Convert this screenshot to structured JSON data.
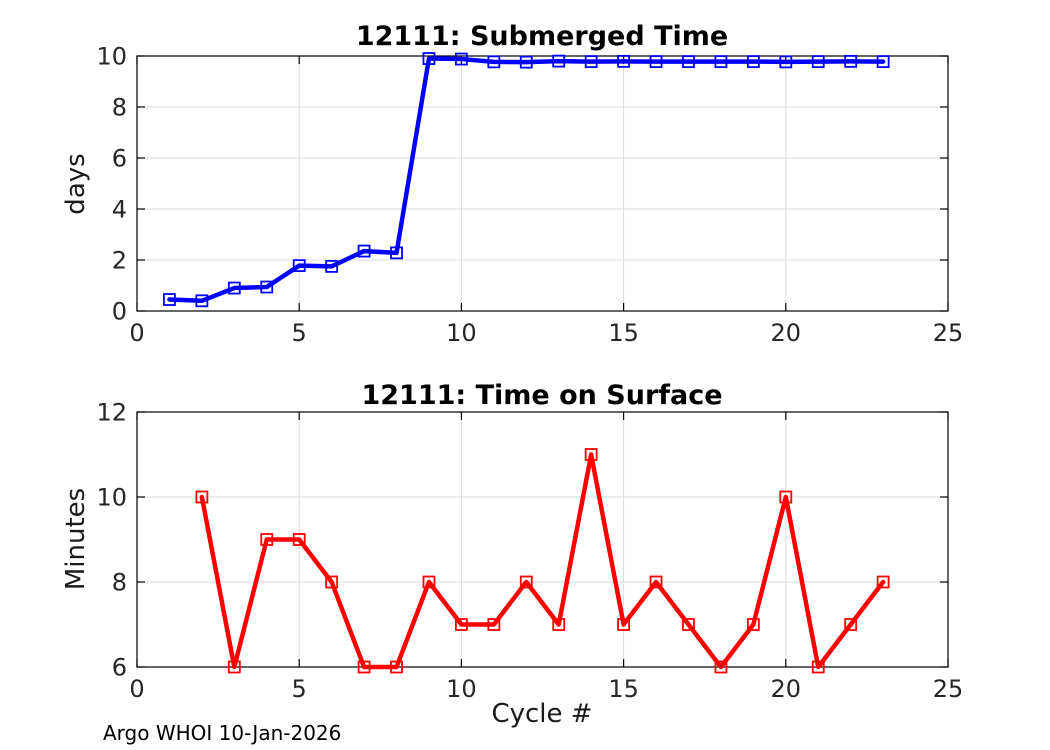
{
  "figure": {
    "footer": "Argo WHOI 10-Jan-2026",
    "background_color": "#FFFFFF",
    "axis_color": "#000000",
    "grid_color": "#DBDBDB",
    "tick_label_color": "#262626"
  },
  "chart_data": [
    {
      "type": "line",
      "title": "12111: Submerged Time",
      "xlabel": "",
      "ylabel": "days",
      "color": "#0000FF",
      "marker": "open-square",
      "grid": true,
      "xlim": [
        0,
        25
      ],
      "ylim": [
        0,
        10
      ],
      "xticks": [
        0,
        5,
        10,
        15,
        20,
        25
      ],
      "yticks": [
        0,
        2,
        4,
        6,
        8,
        10
      ],
      "x": [
        1,
        2,
        3,
        4,
        5,
        6,
        7,
        8,
        9,
        10,
        11,
        12,
        13,
        14,
        15,
        16,
        17,
        18,
        19,
        20,
        21,
        22,
        23
      ],
      "y": [
        0.45,
        0.4,
        0.9,
        0.94,
        1.78,
        1.75,
        2.35,
        2.28,
        9.9,
        9.88,
        9.77,
        9.76,
        9.8,
        9.78,
        9.79,
        9.78,
        9.78,
        9.78,
        9.78,
        9.77,
        9.78,
        9.79,
        9.78
      ]
    },
    {
      "type": "line",
      "title": "12111: Time on Surface",
      "xlabel": "Cycle #",
      "ylabel": "Minutes",
      "color": "#FF0000",
      "marker": "open-square",
      "grid": true,
      "xlim": [
        0,
        25
      ],
      "ylim": [
        6,
        12
      ],
      "xticks": [
        0,
        5,
        10,
        15,
        20,
        25
      ],
      "yticks": [
        6,
        8,
        10,
        12
      ],
      "x": [
        2,
        3,
        4,
        5,
        6,
        7,
        8,
        9,
        10,
        11,
        12,
        13,
        14,
        15,
        16,
        17,
        18,
        19,
        20,
        21,
        22,
        23
      ],
      "y": [
        10,
        6,
        9,
        9,
        8,
        6,
        6,
        8,
        7,
        7,
        8,
        7,
        11,
        7,
        8,
        7,
        6,
        7,
        10,
        6,
        7,
        8
      ]
    }
  ]
}
